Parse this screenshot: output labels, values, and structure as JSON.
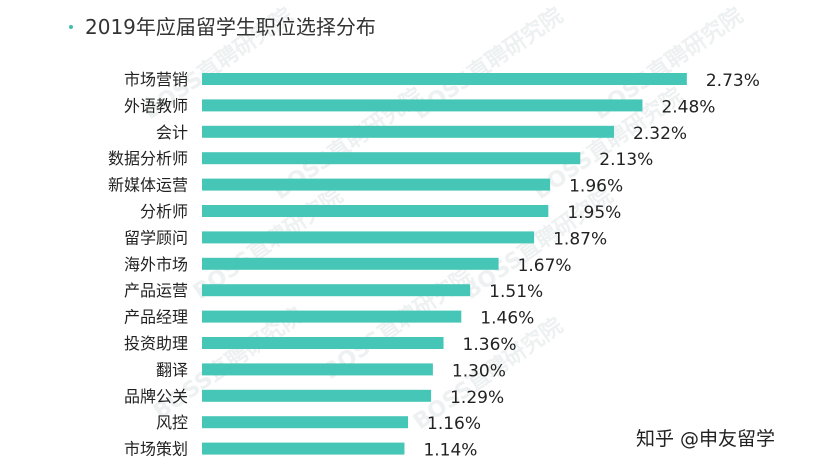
{
  "chart_data": {
    "type": "bar",
    "orientation": "horizontal",
    "title": "2019年应届留学生职位选择分布",
    "categories": [
      "市场营销",
      "外语教师",
      "会计",
      "数据分析师",
      "新媒体运营",
      "分析师",
      "留学顾问",
      "海外市场",
      "产品运营",
      "产品经理",
      "投资助理",
      "翻译",
      "品牌公关",
      "风控",
      "市场策划"
    ],
    "values": [
      2.73,
      2.48,
      2.32,
      2.13,
      1.96,
      1.95,
      1.87,
      1.67,
      1.51,
      1.46,
      1.36,
      1.3,
      1.29,
      1.16,
      1.14
    ],
    "value_labels": [
      "2.73%",
      "2.48%",
      "2.32%",
      "2.13%",
      "1.96%",
      "1.95%",
      "1.87%",
      "1.67%",
      "1.51%",
      "1.46%",
      "1.36%",
      "1.30%",
      "1.29%",
      "1.16%",
      "1.14%"
    ],
    "unit": "%",
    "bar_color": "#45c6b6",
    "grid": false,
    "legend": "none"
  },
  "watermark": "BOSS直聘研究院",
  "credit": "知乎 @申友留学"
}
